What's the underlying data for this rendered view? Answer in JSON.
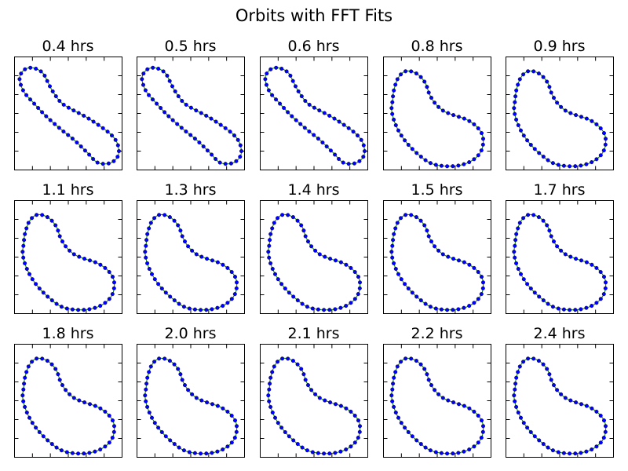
{
  "figure": {
    "title": "Orbits with FFT Fits"
  },
  "chart_data": {
    "type": "scatter",
    "title": "Orbits with FFT Fits",
    "grid": false,
    "rows": 3,
    "cols": 5,
    "colors": {
      "points": "#0000ff",
      "point_edge": "#000000",
      "fit_line": "#008000"
    },
    "panels": [
      {
        "title": "0.4 hrs",
        "shape": "figure-eight"
      },
      {
        "title": "0.5 hrs",
        "shape": "figure-eight"
      },
      {
        "title": "0.6 hrs",
        "shape": "figure-eight"
      },
      {
        "title": "0.8 hrs",
        "shape": "bean"
      },
      {
        "title": "0.9 hrs",
        "shape": "bean"
      },
      {
        "title": "1.1 hrs",
        "shape": "bean"
      },
      {
        "title": "1.3 hrs",
        "shape": "bean"
      },
      {
        "title": "1.4 hrs",
        "shape": "bean"
      },
      {
        "title": "1.5 hrs",
        "shape": "bean"
      },
      {
        "title": "1.7 hrs",
        "shape": "bean"
      },
      {
        "title": "1.8 hrs",
        "shape": "bean"
      },
      {
        "title": "2.0 hrs",
        "shape": "bean"
      },
      {
        "title": "2.1 hrs",
        "shape": "bean"
      },
      {
        "title": "2.2 hrs",
        "shape": "bean"
      },
      {
        "title": "2.4 hrs",
        "shape": "bean"
      }
    ]
  }
}
